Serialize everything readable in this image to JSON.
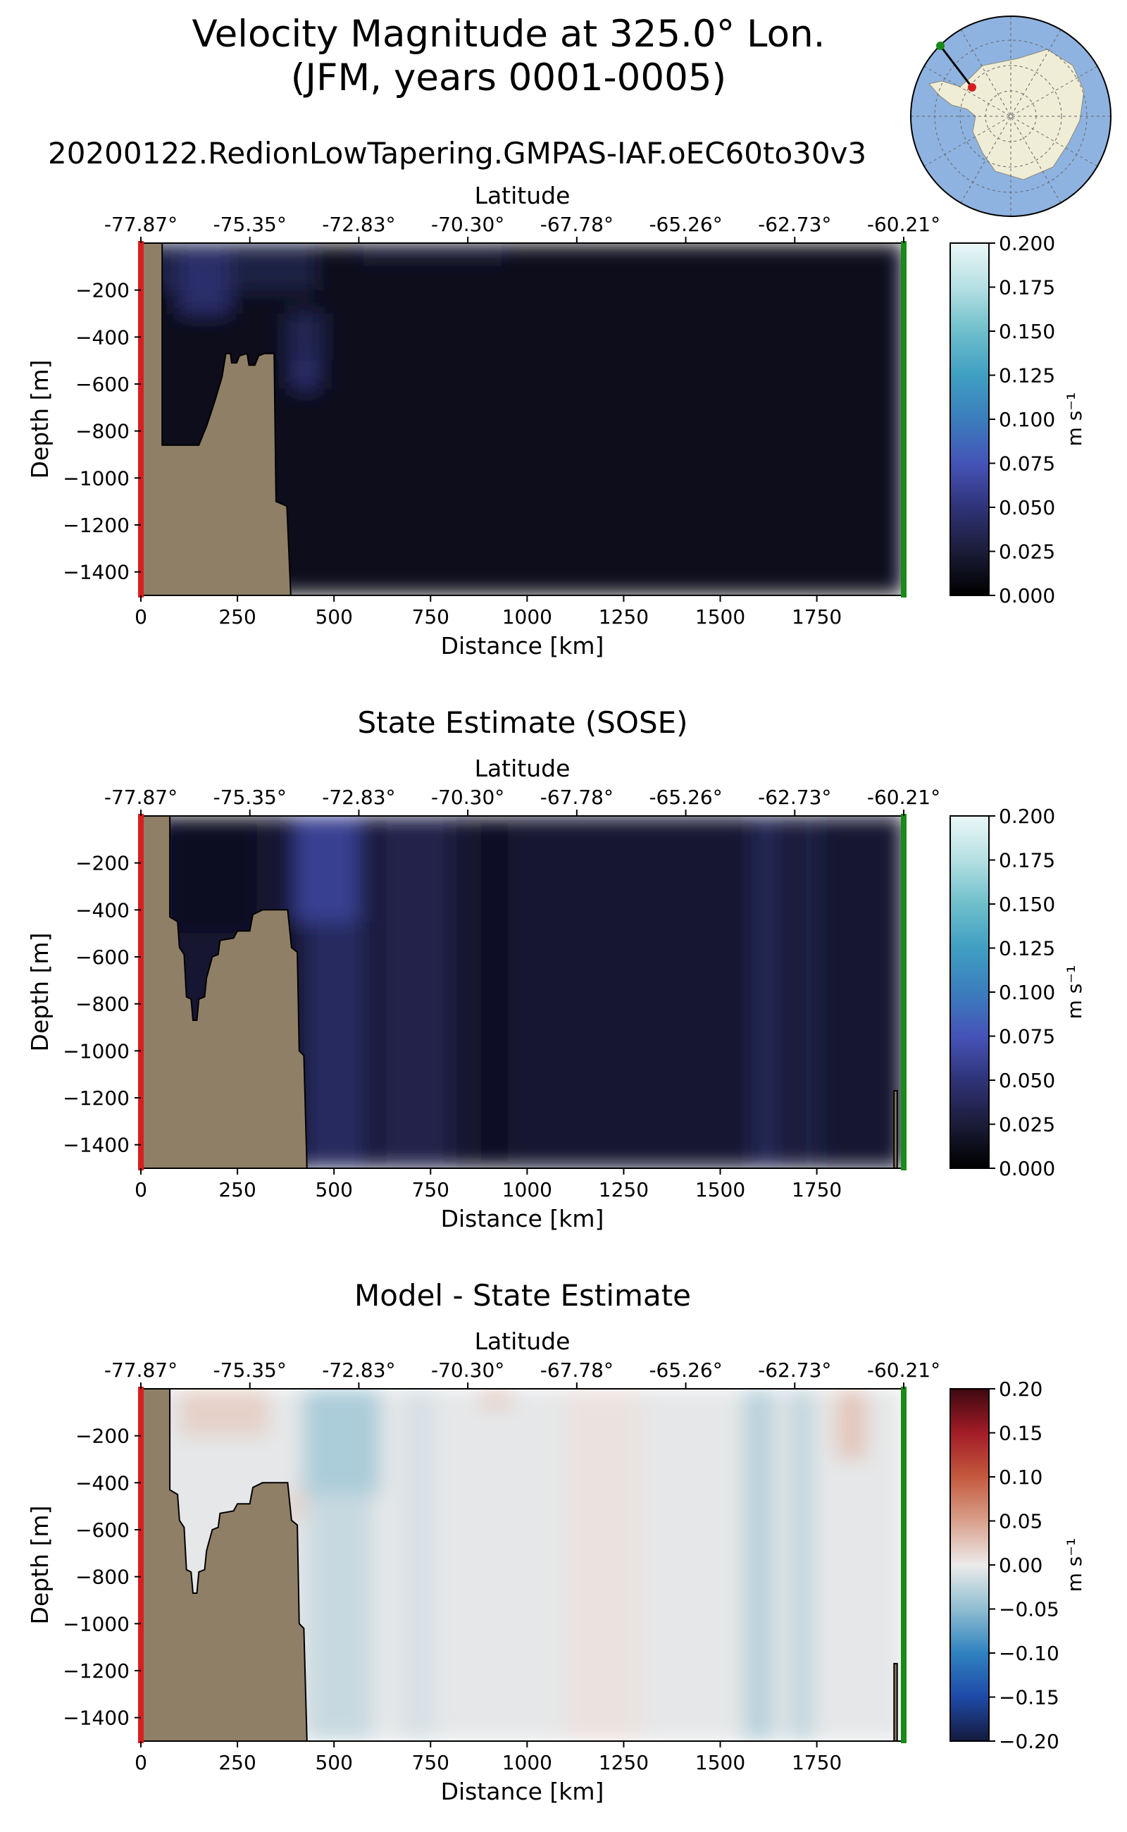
{
  "figure": {
    "title_line1": "Velocity Magnitude at 325.0° Lon.",
    "title_line2": "(JFM, years 0001-0005)",
    "colors": {
      "land": "#8f7f66",
      "start_marker": "#d62020",
      "end_marker": "#1a8a1a",
      "map_ocean": "#8fb3e0",
      "map_land": "#efedd6"
    },
    "inset_map": {
      "type": "south-polar stereographic map of Antarctica",
      "transect_start": "red point near the Antarctic coast",
      "transect_end": "green point offshore"
    }
  },
  "chart_data": [
    {
      "type": "heatmap",
      "title": "20200122.RedionLowTapering.GMPAS-IAF.oEC60to30v3",
      "xlabel": "Distance [km]",
      "ylabel": "Depth [m]",
      "secondary_xlabel": "Latitude",
      "x_ticks": [
        0,
        250,
        500,
        750,
        1000,
        1250,
        1500,
        1750
      ],
      "x_tick_labels": [
        "0",
        "250",
        "500",
        "750",
        "1000",
        "1250",
        "1500",
        "1750"
      ],
      "xlim": [
        0,
        1975
      ],
      "y_ticks": [
        -200,
        -400,
        -600,
        -800,
        -1000,
        -1200,
        -1400
      ],
      "y_tick_labels": [
        "−200",
        "−400",
        "−600",
        "−800",
        "−1000",
        "−1200",
        "−1400"
      ],
      "ylim": [
        -1500,
        0
      ],
      "lat_ticks": [
        "-77.87°",
        "-75.35°",
        "-72.83°",
        "-70.30°",
        "-67.78°",
        "-65.26°",
        "-62.73°",
        "-60.21°"
      ],
      "colorbar": {
        "label": "m s⁻¹",
        "range": [
          0,
          0.2
        ],
        "ticks": [
          "0.000",
          "0.025",
          "0.050",
          "0.075",
          "0.100",
          "0.125",
          "0.150",
          "0.175",
          "0.200"
        ],
        "colors": [
          "#000000",
          "#1b1c38",
          "#2f3378",
          "#4554b8",
          "#3b7dbd",
          "#3f9fc2",
          "#6ebfcb",
          "#b5e0e3",
          "#ebf7f7"
        ]
      },
      "bathymetry": [
        [
          0,
          0
        ],
        [
          55,
          0
        ],
        [
          55,
          -860
        ],
        [
          150,
          -860
        ],
        [
          160,
          -820
        ],
        [
          170,
          -780
        ],
        [
          190,
          -680
        ],
        [
          210,
          -570
        ],
        [
          220,
          -470
        ],
        [
          232,
          -470
        ],
        [
          235,
          -510
        ],
        [
          248,
          -510
        ],
        [
          255,
          -480
        ],
        [
          275,
          -470
        ],
        [
          280,
          -520
        ],
        [
          295,
          -520
        ],
        [
          305,
          -480
        ],
        [
          320,
          -470
        ],
        [
          345,
          -470
        ],
        [
          350,
          -1100
        ],
        [
          378,
          -1120
        ],
        [
          388,
          -1500
        ],
        [
          0,
          -1500
        ]
      ],
      "right_land": [],
      "field": [
        {
          "x": [
            0,
            1975
          ],
          "y": [
            0,
            -1500
          ],
          "v": 0.012
        },
        {
          "x": [
            0,
            450
          ],
          "y": [
            0,
            -200
          ],
          "v": 0.03
        },
        {
          "x": [
            100,
            230
          ],
          "y": [
            -30,
            -300
          ],
          "v": 0.045
        },
        {
          "x": [
            390,
            460
          ],
          "y": [
            -480,
            -620
          ],
          "v": 0.045
        },
        {
          "x": [
            380,
            470
          ],
          "y": [
            -300,
            -500
          ],
          "v": 0.035
        },
        {
          "x": [
            560,
            950
          ],
          "y": [
            0,
            -70
          ],
          "v": 0.025
        },
        {
          "x": [
            1950,
            1975
          ],
          "y": [
            0,
            -1500
          ],
          "v": 0.022
        }
      ]
    },
    {
      "type": "heatmap",
      "title": "State Estimate (SOSE)",
      "xlabel": "Distance [km]",
      "ylabel": "Depth [m]",
      "secondary_xlabel": "Latitude",
      "x_ticks": [
        0,
        250,
        500,
        750,
        1000,
        1250,
        1500,
        1750
      ],
      "x_tick_labels": [
        "0",
        "250",
        "500",
        "750",
        "1000",
        "1250",
        "1500",
        "1750"
      ],
      "xlim": [
        0,
        1975
      ],
      "y_ticks": [
        -200,
        -400,
        -600,
        -800,
        -1000,
        -1200,
        -1400
      ],
      "y_tick_labels": [
        "−200",
        "−400",
        "−600",
        "−800",
        "−1000",
        "−1200",
        "−1400"
      ],
      "ylim": [
        -1500,
        0
      ],
      "lat_ticks": [
        "-77.87°",
        "-75.35°",
        "-72.83°",
        "-70.30°",
        "-67.78°",
        "-65.26°",
        "-62.73°",
        "-60.21°"
      ],
      "colorbar": {
        "label": "m s⁻¹",
        "range": [
          0,
          0.2
        ],
        "ticks": [
          "0.000",
          "0.025",
          "0.050",
          "0.075",
          "0.100",
          "0.125",
          "0.150",
          "0.175",
          "0.200"
        ],
        "colors": [
          "#000000",
          "#1b1c38",
          "#2f3378",
          "#4554b8",
          "#3b7dbd",
          "#3f9fc2",
          "#6ebfcb",
          "#b5e0e3",
          "#ebf7f7"
        ]
      },
      "bathymetry": [
        [
          0,
          0
        ],
        [
          75,
          0
        ],
        [
          75,
          -430
        ],
        [
          95,
          -450
        ],
        [
          100,
          -560
        ],
        [
          112,
          -590
        ],
        [
          118,
          -770
        ],
        [
          130,
          -780
        ],
        [
          135,
          -870
        ],
        [
          145,
          -870
        ],
        [
          150,
          -780
        ],
        [
          165,
          -770
        ],
        [
          170,
          -690
        ],
        [
          185,
          -600
        ],
        [
          200,
          -590
        ],
        [
          205,
          -530
        ],
        [
          240,
          -520
        ],
        [
          250,
          -490
        ],
        [
          282,
          -490
        ],
        [
          290,
          -420
        ],
        [
          315,
          -400
        ],
        [
          380,
          -400
        ],
        [
          390,
          -560
        ],
        [
          405,
          -580
        ],
        [
          410,
          -1000
        ],
        [
          422,
          -1020
        ],
        [
          430,
          -1500
        ],
        [
          0,
          -1500
        ]
      ],
      "right_land": [
        [
          1950,
          -1500
        ],
        [
          1950,
          -1170
        ],
        [
          1958,
          -1170
        ],
        [
          1958,
          -1500
        ]
      ],
      "field": [
        {
          "x": [
            0,
            1975
          ],
          "y": [
            0,
            -1500
          ],
          "v": 0.022
        },
        {
          "x": [
            430,
            580
          ],
          "y": [
            0,
            -1500
          ],
          "v": 0.04
        },
        {
          "x": [
            400,
            560
          ],
          "y": [
            0,
            -450
          ],
          "v": 0.06
        },
        {
          "x": [
            620,
            800
          ],
          "y": [
            0,
            -1500
          ],
          "v": 0.033
        },
        {
          "x": [
            880,
            950
          ],
          "y": [
            0,
            -1500
          ],
          "v": 0.015
        },
        {
          "x": [
            1580,
            1660
          ],
          "y": [
            0,
            -1500
          ],
          "v": 0.035
        },
        {
          "x": [
            1700,
            1760
          ],
          "y": [
            0,
            -1500
          ],
          "v": 0.03
        },
        {
          "x": [
            80,
            300
          ],
          "y": [
            0,
            -500
          ],
          "v": 0.015
        }
      ]
    },
    {
      "type": "heatmap",
      "title": "Model - State Estimate",
      "xlabel": "Distance [km]",
      "ylabel": "Depth [m]",
      "secondary_xlabel": "Latitude",
      "x_ticks": [
        0,
        250,
        500,
        750,
        1000,
        1250,
        1500,
        1750
      ],
      "x_tick_labels": [
        "0",
        "250",
        "500",
        "750",
        "1000",
        "1250",
        "1500",
        "1750"
      ],
      "xlim": [
        0,
        1975
      ],
      "y_ticks": [
        -200,
        -400,
        -600,
        -800,
        -1000,
        -1200,
        -1400
      ],
      "y_tick_labels": [
        "−200",
        "−400",
        "−600",
        "−800",
        "−1000",
        "−1200",
        "−1400"
      ],
      "ylim": [
        -1500,
        0
      ],
      "lat_ticks": [
        "-77.87°",
        "-75.35°",
        "-72.83°",
        "-70.30°",
        "-67.78°",
        "-65.26°",
        "-62.73°",
        "-60.21°"
      ],
      "colorbar": {
        "label": "m s⁻¹",
        "range": [
          -0.2,
          0.2
        ],
        "ticks": [
          "−0.20",
          "−0.15",
          "−0.10",
          "−0.05",
          "0.00",
          "0.05",
          "0.10",
          "0.15",
          "0.20"
        ],
        "colors": [
          "#131a3c",
          "#1f4aa8",
          "#2f82c0",
          "#8fbed1",
          "#ecebea",
          "#d9a08b",
          "#c4593e",
          "#a31c26",
          "#3d0810"
        ]
      },
      "bathymetry": [
        [
          0,
          0
        ],
        [
          75,
          0
        ],
        [
          75,
          -430
        ],
        [
          95,
          -450
        ],
        [
          100,
          -560
        ],
        [
          112,
          -590
        ],
        [
          118,
          -770
        ],
        [
          130,
          -780
        ],
        [
          135,
          -870
        ],
        [
          145,
          -870
        ],
        [
          150,
          -780
        ],
        [
          165,
          -770
        ],
        [
          170,
          -690
        ],
        [
          185,
          -600
        ],
        [
          200,
          -590
        ],
        [
          205,
          -530
        ],
        [
          240,
          -520
        ],
        [
          250,
          -490
        ],
        [
          282,
          -490
        ],
        [
          290,
          -420
        ],
        [
          315,
          -400
        ],
        [
          380,
          -400
        ],
        [
          390,
          -560
        ],
        [
          405,
          -580
        ],
        [
          410,
          -1000
        ],
        [
          422,
          -1020
        ],
        [
          430,
          -1500
        ],
        [
          0,
          -1500
        ]
      ],
      "right_land": [
        [
          1950,
          -1500
        ],
        [
          1950,
          -1170
        ],
        [
          1958,
          -1170
        ],
        [
          1958,
          -1500
        ]
      ],
      "field": [
        {
          "x": [
            0,
            1975
          ],
          "y": [
            0,
            -1500
          ],
          "v": -0.004
        },
        {
          "x": [
            100,
            330
          ],
          "y": [
            0,
            -200
          ],
          "v": 0.018
        },
        {
          "x": [
            380,
            420
          ],
          "y": [
            -430,
            -560
          ],
          "v": 0.02
        },
        {
          "x": [
            420,
            620
          ],
          "y": [
            0,
            -450
          ],
          "v": -0.035
        },
        {
          "x": [
            430,
            600
          ],
          "y": [
            -450,
            -1500
          ],
          "v": -0.02
        },
        {
          "x": [
            680,
            760
          ],
          "y": [
            0,
            -1500
          ],
          "v": -0.012
        },
        {
          "x": [
            880,
            960
          ],
          "y": [
            0,
            -80
          ],
          "v": 0.02
        },
        {
          "x": [
            1560,
            1640
          ],
          "y": [
            0,
            -1500
          ],
          "v": -0.028
        },
        {
          "x": [
            1680,
            1740
          ],
          "y": [
            0,
            -1500
          ],
          "v": -0.024
        },
        {
          "x": [
            1800,
            1880
          ],
          "y": [
            0,
            -300
          ],
          "v": 0.025
        },
        {
          "x": [
            1100,
            1300
          ],
          "y": [
            0,
            -1500
          ],
          "v": 0.006
        }
      ]
    }
  ]
}
